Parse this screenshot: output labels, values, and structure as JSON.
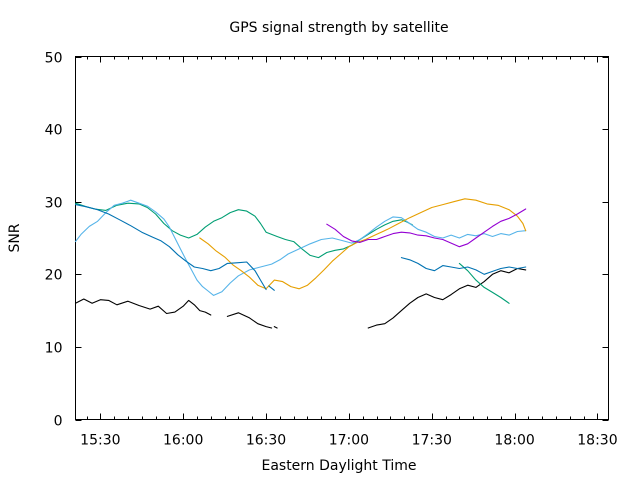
{
  "chart_data": {
    "type": "line",
    "title": "GPS signal strength by satellite",
    "xlabel": "Eastern Daylight Time",
    "ylabel": "SNR",
    "x_unit": "time of day (EDT)",
    "xlim": [
      "15:21",
      "18:34"
    ],
    "ylim": [
      0,
      50
    ],
    "x_ticks": [
      "15:30",
      "16:00",
      "16:30",
      "17:00",
      "17:30",
      "18:00",
      "18:30"
    ],
    "y_ticks": [
      0,
      10,
      20,
      30,
      40,
      50
    ],
    "grid": false,
    "legend": "none",
    "series": [
      {
        "color": "#000000",
        "segments": [
          [
            [
              "15:21",
              16.0
            ],
            [
              "15:24",
              16.6
            ],
            [
              "15:27",
              16.0
            ],
            [
              "15:30",
              16.5
            ],
            [
              "15:33",
              16.4
            ],
            [
              "15:36",
              15.8
            ],
            [
              "15:40",
              16.3
            ],
            [
              "15:44",
              15.7
            ],
            [
              "15:48",
              15.2
            ],
            [
              "15:51",
              15.6
            ],
            [
              "15:54",
              14.6
            ],
            [
              "15:57",
              14.8
            ],
            [
              "16:00",
              15.6
            ],
            [
              "16:02",
              16.4
            ],
            [
              "16:04",
              15.8
            ],
            [
              "16:06",
              15.0
            ],
            [
              "16:08",
              14.8
            ],
            [
              "16:10",
              14.4
            ]
          ],
          [
            [
              "16:16",
              14.2
            ],
            [
              "16:20",
              14.7
            ],
            [
              "16:24",
              14.0
            ],
            [
              "16:27",
              13.2
            ],
            [
              "16:30",
              12.8
            ],
            [
              "16:32",
              12.6
            ]
          ],
          [
            [
              "16:33",
              12.8
            ],
            [
              "16:34",
              12.6
            ]
          ],
          [
            [
              "17:07",
              12.6
            ],
            [
              "17:10",
              13.0
            ],
            [
              "17:13",
              13.2
            ],
            [
              "17:16",
              14.0
            ],
            [
              "17:19",
              15.0
            ],
            [
              "17:22",
              16.0
            ],
            [
              "17:25",
              16.8
            ],
            [
              "17:28",
              17.3
            ],
            [
              "17:31",
              16.8
            ],
            [
              "17:34",
              16.5
            ],
            [
              "17:37",
              17.2
            ],
            [
              "17:40",
              18.0
            ],
            [
              "17:43",
              18.5
            ],
            [
              "17:46",
              18.2
            ],
            [
              "17:49",
              19.0
            ],
            [
              "17:52",
              20.0
            ],
            [
              "17:55",
              20.5
            ],
            [
              "17:58",
              20.2
            ],
            [
              "18:01",
              20.8
            ],
            [
              "18:04",
              20.6
            ]
          ]
        ]
      },
      {
        "color": "#009e73",
        "segments": [
          [
            [
              "15:21",
              29.8
            ],
            [
              "15:25",
              29.3
            ],
            [
              "15:28",
              29.0
            ],
            [
              "15:32",
              28.8
            ],
            [
              "15:36",
              29.5
            ],
            [
              "15:40",
              29.8
            ],
            [
              "15:44",
              29.7
            ],
            [
              "15:47",
              29.2
            ],
            [
              "15:50",
              28.3
            ],
            [
              "15:53",
              27.0
            ],
            [
              "15:56",
              26.0
            ],
            [
              "15:59",
              25.4
            ],
            [
              "16:02",
              25.0
            ],
            [
              "16:05",
              25.5
            ],
            [
              "16:08",
              26.5
            ],
            [
              "16:11",
              27.3
            ],
            [
              "16:14",
              27.8
            ],
            [
              "16:17",
              28.5
            ],
            [
              "16:20",
              28.9
            ],
            [
              "16:23",
              28.7
            ],
            [
              "16:26",
              28.0
            ],
            [
              "16:28",
              27.0
            ],
            [
              "16:30",
              25.8
            ],
            [
              "16:34",
              25.2
            ],
            [
              "16:37",
              24.8
            ],
            [
              "16:40",
              24.5
            ],
            [
              "16:43",
              23.5
            ],
            [
              "16:46",
              22.6
            ],
            [
              "16:49",
              22.3
            ],
            [
              "16:52",
              23.0
            ],
            [
              "16:55",
              23.3
            ],
            [
              "16:58",
              23.5
            ],
            [
              "17:01",
              24.0
            ],
            [
              "17:04",
              24.8
            ],
            [
              "17:07",
              25.5
            ],
            [
              "17:10",
              26.2
            ],
            [
              "17:13",
              26.8
            ],
            [
              "17:16",
              27.3
            ],
            [
              "17:19",
              27.5
            ],
            [
              "17:21",
              27.2
            ],
            [
              "17:23",
              26.8
            ]
          ],
          [
            [
              "17:40",
              21.5
            ],
            [
              "17:43",
              20.5
            ],
            [
              "17:46",
              19.2
            ],
            [
              "17:49",
              18.2
            ],
            [
              "17:52",
              17.5
            ],
            [
              "17:55",
              16.8
            ],
            [
              "17:58",
              16.0
            ]
          ]
        ]
      },
      {
        "color": "#56b4e9",
        "segments": [
          [
            [
              "15:21",
              24.5
            ],
            [
              "15:23",
              25.5
            ],
            [
              "15:26",
              26.6
            ],
            [
              "15:29",
              27.3
            ],
            [
              "15:32",
              28.5
            ],
            [
              "15:35",
              29.5
            ],
            [
              "15:38",
              29.8
            ],
            [
              "15:41",
              30.2
            ],
            [
              "15:44",
              29.8
            ],
            [
              "15:47",
              29.4
            ],
            [
              "15:50",
              28.6
            ],
            [
              "15:53",
              27.6
            ],
            [
              "15:55",
              26.5
            ],
            [
              "15:57",
              25.0
            ],
            [
              "15:59",
              23.5
            ],
            [
              "16:01",
              22.0
            ],
            [
              "16:03",
              20.6
            ],
            [
              "16:05",
              19.2
            ],
            [
              "16:07",
              18.3
            ],
            [
              "16:09",
              17.7
            ],
            [
              "16:11",
              17.1
            ],
            [
              "16:14",
              17.6
            ],
            [
              "16:17",
              18.8
            ],
            [
              "16:20",
              19.8
            ],
            [
              "16:24",
              20.6
            ],
            [
              "16:28",
              21.0
            ],
            [
              "16:32",
              21.4
            ],
            [
              "16:35",
              22.0
            ],
            [
              "16:38",
              22.8
            ],
            [
              "16:42",
              23.5
            ],
            [
              "16:46",
              24.2
            ],
            [
              "16:50",
              24.8
            ],
            [
              "16:54",
              25.0
            ],
            [
              "16:58",
              24.6
            ],
            [
              "17:01",
              24.3
            ],
            [
              "17:04",
              24.8
            ],
            [
              "17:07",
              25.6
            ],
            [
              "17:10",
              26.5
            ],
            [
              "17:13",
              27.3
            ],
            [
              "17:16",
              27.9
            ],
            [
              "17:19",
              27.8
            ],
            [
              "17:22",
              27.0
            ],
            [
              "17:25",
              26.2
            ],
            [
              "17:28",
              25.8
            ],
            [
              "17:31",
              25.2
            ],
            [
              "17:34",
              25.0
            ],
            [
              "17:37",
              25.4
            ],
            [
              "17:40",
              25.0
            ],
            [
              "17:43",
              25.5
            ],
            [
              "17:46",
              25.3
            ],
            [
              "17:49",
              25.6
            ],
            [
              "17:52",
              25.2
            ],
            [
              "17:55",
              25.6
            ],
            [
              "17:58",
              25.4
            ],
            [
              "18:01",
              25.9
            ],
            [
              "18:04",
              26.0
            ]
          ]
        ]
      },
      {
        "color": "#e69f00",
        "segments": [
          [
            [
              "16:06",
              25.0
            ],
            [
              "16:09",
              24.2
            ],
            [
              "16:12",
              23.2
            ],
            [
              "16:15",
              22.4
            ],
            [
              "16:18",
              21.3
            ],
            [
              "16:21",
              20.5
            ],
            [
              "16:24",
              19.6
            ],
            [
              "16:27",
              18.5
            ],
            [
              "16:30",
              18.0
            ],
            [
              "16:33",
              19.2
            ],
            [
              "16:36",
              19.0
            ],
            [
              "16:39",
              18.3
            ],
            [
              "16:42",
              18.0
            ],
            [
              "16:45",
              18.5
            ],
            [
              "16:48",
              19.5
            ],
            [
              "16:51",
              20.6
            ],
            [
              "16:54",
              21.8
            ],
            [
              "16:57",
              22.8
            ],
            [
              "17:00",
              23.8
            ],
            [
              "17:03",
              24.4
            ],
            [
              "17:06",
              24.8
            ],
            [
              "17:10",
              25.5
            ],
            [
              "17:14",
              26.2
            ],
            [
              "17:18",
              27.0
            ],
            [
              "17:22",
              27.8
            ],
            [
              "17:26",
              28.5
            ],
            [
              "17:30",
              29.2
            ],
            [
              "17:34",
              29.6
            ],
            [
              "17:38",
              30.0
            ],
            [
              "17:42",
              30.4
            ],
            [
              "17:46",
              30.2
            ],
            [
              "17:50",
              29.7
            ],
            [
              "17:54",
              29.5
            ],
            [
              "17:58",
              28.9
            ],
            [
              "18:01",
              28.0
            ],
            [
              "18:03",
              27.0
            ],
            [
              "18:04",
              26.0
            ]
          ]
        ]
      },
      {
        "color": "#0072b2",
        "segments": [
          [
            [
              "15:21",
              29.6
            ],
            [
              "15:25",
              29.3
            ],
            [
              "15:29",
              28.9
            ],
            [
              "15:33",
              28.3
            ],
            [
              "15:37",
              27.5
            ],
            [
              "15:41",
              26.7
            ],
            [
              "15:45",
              25.8
            ],
            [
              "15:49",
              25.1
            ],
            [
              "15:52",
              24.6
            ],
            [
              "15:55",
              23.8
            ],
            [
              "15:58",
              22.7
            ],
            [
              "16:01",
              21.8
            ],
            [
              "16:04",
              21.0
            ],
            [
              "16:07",
              20.8
            ],
            [
              "16:10",
              20.5
            ],
            [
              "16:13",
              20.8
            ],
            [
              "16:16",
              21.5
            ],
            [
              "16:20",
              21.6
            ],
            [
              "16:23",
              21.7
            ],
            [
              "16:26",
              20.5
            ],
            [
              "16:28",
              19.2
            ],
            [
              "16:30",
              17.9
            ]
          ],
          [
            [
              "16:31",
              18.4
            ],
            [
              "16:33",
              17.8
            ]
          ],
          [
            [
              "17:19",
              22.3
            ],
            [
              "17:22",
              22.0
            ],
            [
              "17:25",
              21.5
            ],
            [
              "17:28",
              20.8
            ],
            [
              "17:31",
              20.5
            ],
            [
              "17:34",
              21.2
            ],
            [
              "17:37",
              21.0
            ],
            [
              "17:40",
              20.8
            ],
            [
              "17:43",
              21.0
            ],
            [
              "17:46",
              20.6
            ],
            [
              "17:49",
              20.0
            ],
            [
              "17:52",
              20.4
            ],
            [
              "17:55",
              20.8
            ],
            [
              "17:58",
              21.0
            ],
            [
              "18:01",
              20.8
            ],
            [
              "18:04",
              21.0
            ]
          ]
        ]
      },
      {
        "color": "#9400d3",
        "segments": [
          [
            [
              "16:52",
              26.9
            ],
            [
              "16:55",
              26.2
            ],
            [
              "16:58",
              25.2
            ],
            [
              "17:01",
              24.6
            ],
            [
              "17:04",
              24.4
            ],
            [
              "17:07",
              24.8
            ],
            [
              "17:10",
              24.8
            ],
            [
              "17:13",
              25.2
            ],
            [
              "17:16",
              25.6
            ],
            [
              "17:19",
              25.8
            ],
            [
              "17:22",
              25.7
            ],
            [
              "17:25",
              25.4
            ],
            [
              "17:28",
              25.3
            ],
            [
              "17:31",
              25.0
            ],
            [
              "17:34",
              24.8
            ],
            [
              "17:37",
              24.3
            ],
            [
              "17:40",
              23.8
            ],
            [
              "17:43",
              24.2
            ],
            [
              "17:46",
              25.0
            ],
            [
              "17:49",
              25.8
            ],
            [
              "17:52",
              26.6
            ],
            [
              "17:55",
              27.3
            ],
            [
              "17:58",
              27.7
            ],
            [
              "18:01",
              28.3
            ],
            [
              "18:04",
              29.0
            ]
          ]
        ]
      }
    ]
  }
}
